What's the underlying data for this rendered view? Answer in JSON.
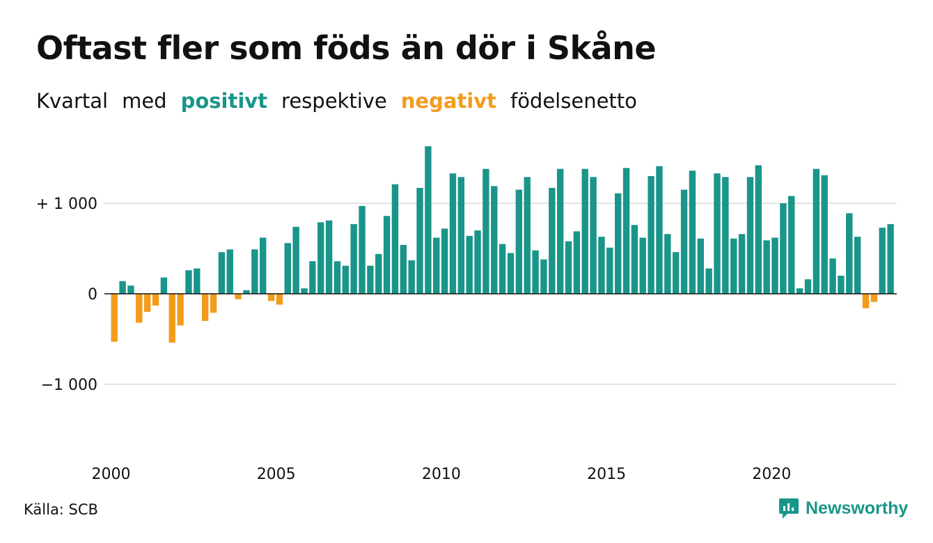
{
  "title": "Oftast fler som föds än dör i Skåne",
  "subtitle": {
    "part1": "Kvartal",
    "part2": "med",
    "positive": "positivt",
    "part3": "respektive",
    "negative": "negativt",
    "part4": "födelsenetto"
  },
  "source": "Källa: SCB",
  "brand": {
    "name": "Newsworthy",
    "icon": "newsworthy-logo-icon"
  },
  "colors": {
    "positive": "#1a9589",
    "negative": "#f39c1c",
    "grid": "#e3e3e3",
    "zero_line": "#111111"
  },
  "chart_data": {
    "type": "bar",
    "title": "Oftast fler som föds än dör i Skåne",
    "x_start_year": 2000,
    "x_tick_labels": [
      "2000",
      "2005",
      "2010",
      "2015",
      "2020"
    ],
    "y_tick_labels": [
      {
        "value": 1000,
        "label": "+ 1 000"
      },
      {
        "value": 0,
        "label": "0"
      },
      {
        "value": -1000,
        "label": "−1 000"
      }
    ],
    "ylim": [
      -1600,
      1600
    ],
    "grid": true,
    "values": [
      -530,
      140,
      90,
      -320,
      -200,
      -130,
      180,
      -540,
      -350,
      260,
      280,
      -300,
      -210,
      460,
      490,
      -60,
      40,
      490,
      620,
      -80,
      -120,
      560,
      740,
      60,
      360,
      790,
      810,
      360,
      310,
      770,
      970,
      310,
      440,
      860,
      1210,
      540,
      370,
      1170,
      1630,
      620,
      720,
      1330,
      1290,
      640,
      700,
      1380,
      1190,
      550,
      450,
      1150,
      1290,
      480,
      380,
      1170,
      1380,
      580,
      690,
      1380,
      1290,
      630,
      510,
      1110,
      1390,
      760,
      620,
      1300,
      1410,
      660,
      460,
      1150,
      1360,
      610,
      280,
      1330,
      1290,
      610,
      660,
      1290,
      1420,
      590,
      620,
      1000,
      1080,
      60,
      160,
      1380,
      1310,
      390,
      200,
      890,
      630,
      -160,
      -90,
      730,
      770
    ]
  }
}
